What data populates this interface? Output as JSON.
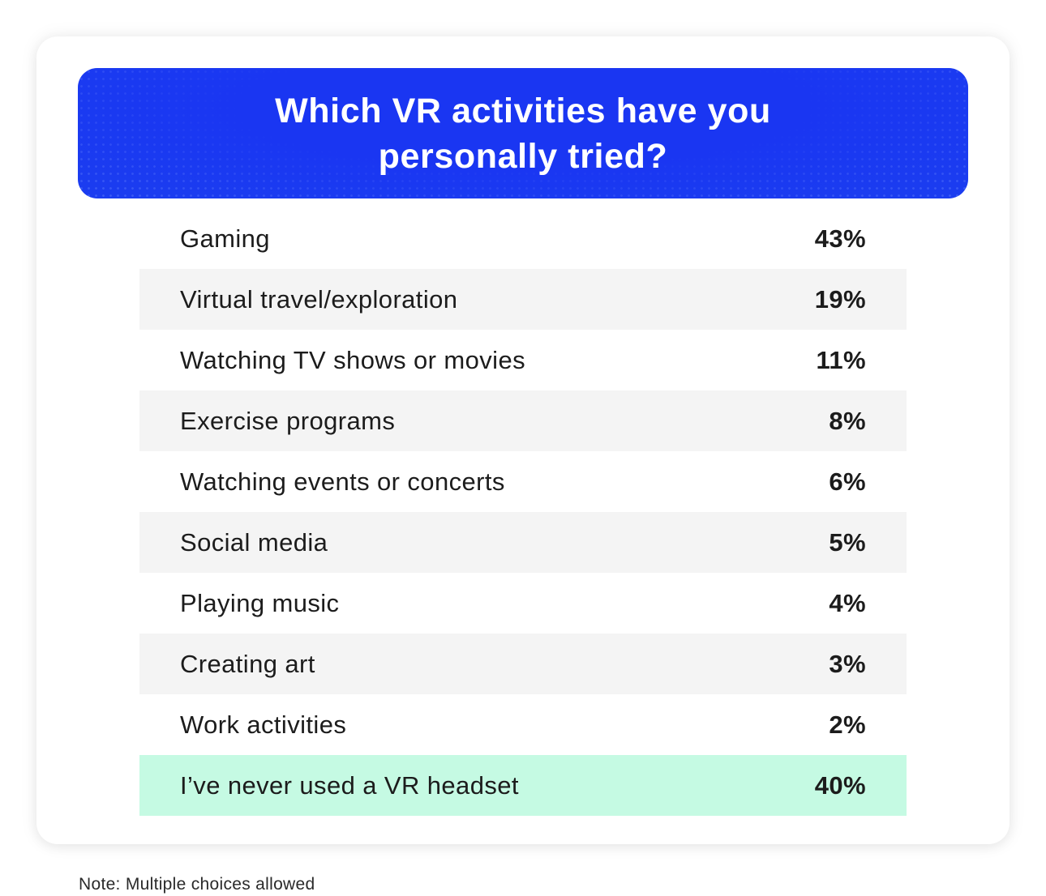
{
  "header": {
    "title": "Which VR activities have you personally tried?"
  },
  "rows": [
    {
      "label": "Gaming",
      "value": "43%"
    },
    {
      "label": "Virtual travel/exploration",
      "value": "19%"
    },
    {
      "label": "Watching TV shows or movies",
      "value": "11%"
    },
    {
      "label": "Exercise programs",
      "value": "8%"
    },
    {
      "label": "Watching events or concerts",
      "value": "6%"
    },
    {
      "label": "Social media",
      "value": "5%"
    },
    {
      "label": "Playing music",
      "value": "4%"
    },
    {
      "label": "Creating art",
      "value": "3%"
    },
    {
      "label": "Work activities",
      "value": "2%"
    },
    {
      "label": "I’ve never used a VR headset",
      "value": "40%"
    }
  ],
  "note": "Note: Multiple choices allowed",
  "colors": {
    "header_bg": "#1b3df0",
    "row_shaded": "#f4f4f4",
    "row_highlight": "#c5fae3",
    "text": "#1c1c1c"
  },
  "chart_data": {
    "type": "table",
    "title": "Which VR activities have you personally tried?",
    "categories": [
      "Gaming",
      "Virtual travel/exploration",
      "Watching TV shows or movies",
      "Exercise programs",
      "Watching events or concerts",
      "Social media",
      "Playing music",
      "Creating art",
      "Work activities",
      "I’ve never used a VR headset"
    ],
    "values": [
      43,
      19,
      11,
      8,
      6,
      5,
      4,
      3,
      2,
      40
    ],
    "unit": "%",
    "annotations": [
      "Note: Multiple choices allowed"
    ],
    "highlighted_category": "I’ve never used a VR headset"
  }
}
